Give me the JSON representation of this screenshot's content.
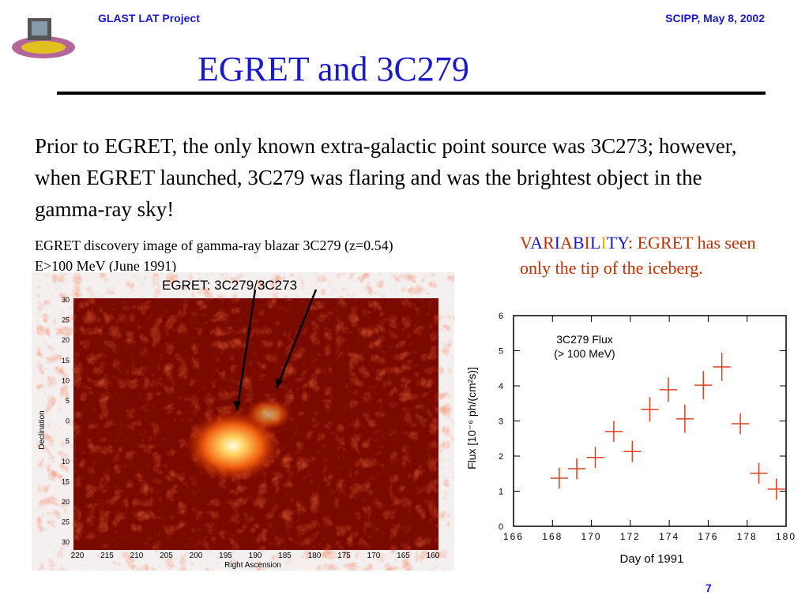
{
  "header": {
    "left": "GLAST LAT Project",
    "right": "SCIPP, May 8, 2002"
  },
  "title": "EGRET and 3C279",
  "body": "Prior to EGRET, the only known extra-galactic point source was 3C273; however, when EGRET launched, 3C279 was flaring and was the brightest object in the gamma-ray sky!",
  "caption": [
    "EGRET discovery image of gamma-ray blazar 3C279 (z=0.54)",
    "E>100 MeV (June 1991)"
  ],
  "variability": {
    "letters": [
      "V",
      "A",
      "R",
      "I",
      "A",
      "B",
      "I",
      "L",
      "I",
      "T",
      "Y"
    ],
    "rest": ": EGRET has seen only the tip of the iceberg."
  },
  "egret_image": {
    "title": "EGRET:  3C279/3C273",
    "ylabel": "Declination",
    "xlabel": "Right Ascension",
    "yticklabels": [
      "30",
      "25",
      "20",
      "15",
      "10",
      "5",
      "0",
      "5",
      "10",
      "15",
      "20",
      "25",
      "30"
    ],
    "xticklabels": [
      "220",
      "215",
      "210",
      "205",
      "200",
      "195",
      "190",
      "185",
      "180",
      "175",
      "170",
      "165",
      "160"
    ]
  },
  "flux_chart": {
    "type": "scatter",
    "title": [
      "3C279 Flux",
      "(> 100 MeV)"
    ],
    "xlabel": "Day of 1991",
    "ylabel": "Flux  [10⁻⁶ ph/(cm²s)]",
    "x": [
      168.35,
      169.25,
      170.2,
      171.15,
      172.1,
      173.0,
      173.95,
      174.8,
      175.75,
      176.7,
      177.65,
      178.6,
      179.5
    ],
    "values": [
      1.37,
      1.64,
      1.96,
      2.7,
      2.13,
      3.33,
      3.89,
      3.06,
      4.02,
      4.54,
      2.92,
      1.51,
      1.06
    ],
    "yerr": [
      0.3,
      0.3,
      0.3,
      0.3,
      0.3,
      0.35,
      0.35,
      0.4,
      0.4,
      0.4,
      0.3,
      0.3,
      0.3
    ],
    "xerr": [
      0.45,
      0.45,
      0.45,
      0.45,
      0.45,
      0.45,
      0.45,
      0.45,
      0.45,
      0.45,
      0.45,
      0.45,
      0.45
    ],
    "color": "#e04020",
    "xlim": [
      166,
      180
    ],
    "ylim": [
      0,
      6
    ],
    "xticks": [
      166,
      168,
      170,
      172,
      174,
      176,
      178,
      180
    ],
    "yticks": [
      0,
      1,
      2,
      3,
      4,
      5,
      6
    ]
  },
  "page_number": "7"
}
